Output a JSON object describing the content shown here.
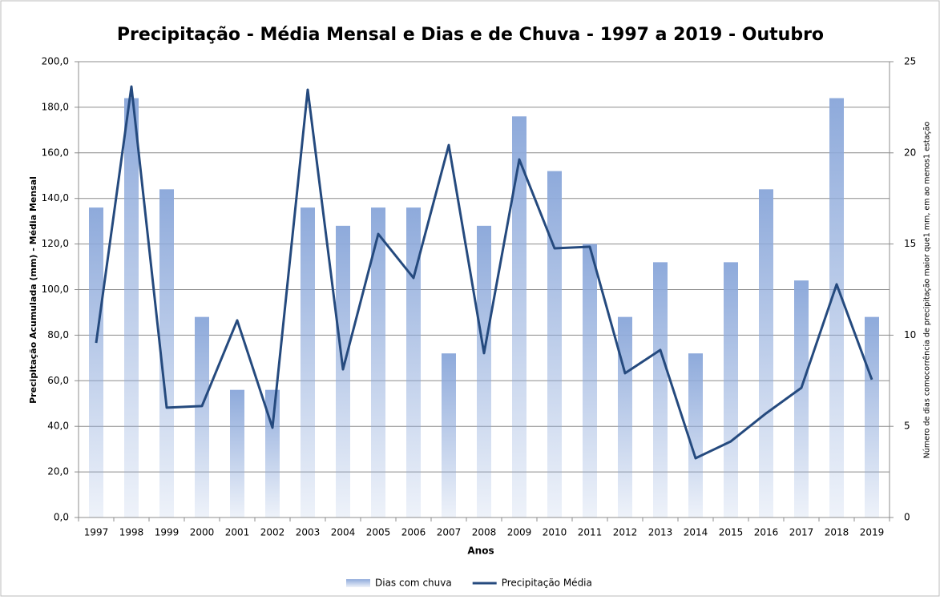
{
  "chart_data": {
    "type": "bar-line",
    "title": "Precipitação - Média Mensal e Dias e de Chuva - 1997 a 2019 - Outubro",
    "x_label": "Anos",
    "y_label": "Precipitação  Acumulada  (mm) - Média Mensal",
    "y2_label": "Número de dias comocorrência de precipitação maior que1 mm, em ao menos1 estação",
    "categories": [
      "1997",
      "1998",
      "1999",
      "2000",
      "2001",
      "2002",
      "2003",
      "2004",
      "2005",
      "2006",
      "2007",
      "2008",
      "2009",
      "2010",
      "2011",
      "2012",
      "2013",
      "2014",
      "2015",
      "2016",
      "2017",
      "2018",
      "2019"
    ],
    "series": [
      {
        "name": "Dias com chuva",
        "type": "bar",
        "axis": "y2",
        "color": "#8eaadb",
        "values": [
          17,
          23,
          18,
          11,
          7,
          7,
          17,
          16,
          17,
          17,
          9,
          16,
          22,
          19,
          15,
          11,
          14,
          9,
          14,
          18,
          13,
          23,
          11
        ]
      },
      {
        "name": "Precipitação Média",
        "type": "line",
        "color": "#254a7e",
        "values": [
          76.6,
          189.1,
          48.2,
          48.9,
          86.5,
          39.4,
          187.7,
          65.0,
          124.4,
          105.1,
          163.4,
          72.1,
          157.1,
          118.1,
          118.8,
          63.3,
          73.5,
          26.0,
          33.4,
          45.7,
          56.9,
          102.3,
          60.5
        ]
      }
    ],
    "ylim": [
      0,
      200
    ],
    "yticks": [
      {
        "value": 0,
        "label": "0,0"
      },
      {
        "value": 20,
        "label": "20,0"
      },
      {
        "value": 40,
        "label": "40,0"
      },
      {
        "value": 60,
        "label": "60,0"
      },
      {
        "value": 80,
        "label": "80,0"
      },
      {
        "value": 100,
        "label": "100,0"
      },
      {
        "value": 120,
        "label": "120,0"
      },
      {
        "value": 140,
        "label": "140,0"
      },
      {
        "value": 160,
        "label": "160,0"
      },
      {
        "value": 180,
        "label": "180,0"
      },
      {
        "value": 200,
        "label": "200,0"
      }
    ],
    "y2lim": [
      0,
      25
    ],
    "y2ticks": [
      0,
      5,
      10,
      15,
      20,
      25
    ],
    "grid": true,
    "legend": "bottom"
  }
}
